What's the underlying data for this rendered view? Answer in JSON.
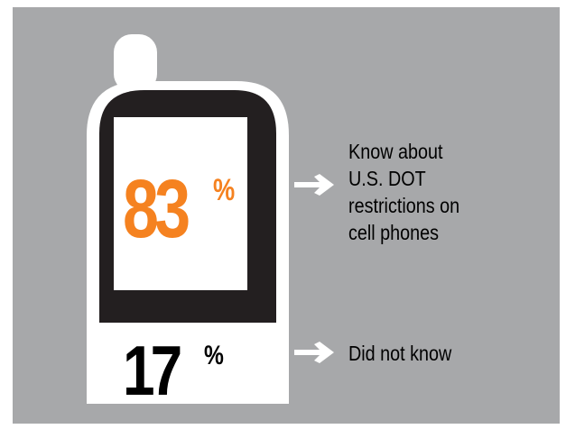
{
  "known": {
    "value": "83",
    "percent_sign": "%",
    "label_lines": [
      "Know about",
      "U.S. DOT",
      "restrictions on",
      "cell phones"
    ]
  },
  "unknown": {
    "value": "17",
    "percent_sign": "%",
    "label": "Did not know"
  },
  "colors": {
    "background": "#a7a8aa",
    "phone_body": "#ffffff",
    "screen_bezel": "#231f20",
    "accent": "#f58220",
    "text": "#000000"
  },
  "icons": [
    "cell-phone-icon",
    "arrow-right-icon"
  ]
}
